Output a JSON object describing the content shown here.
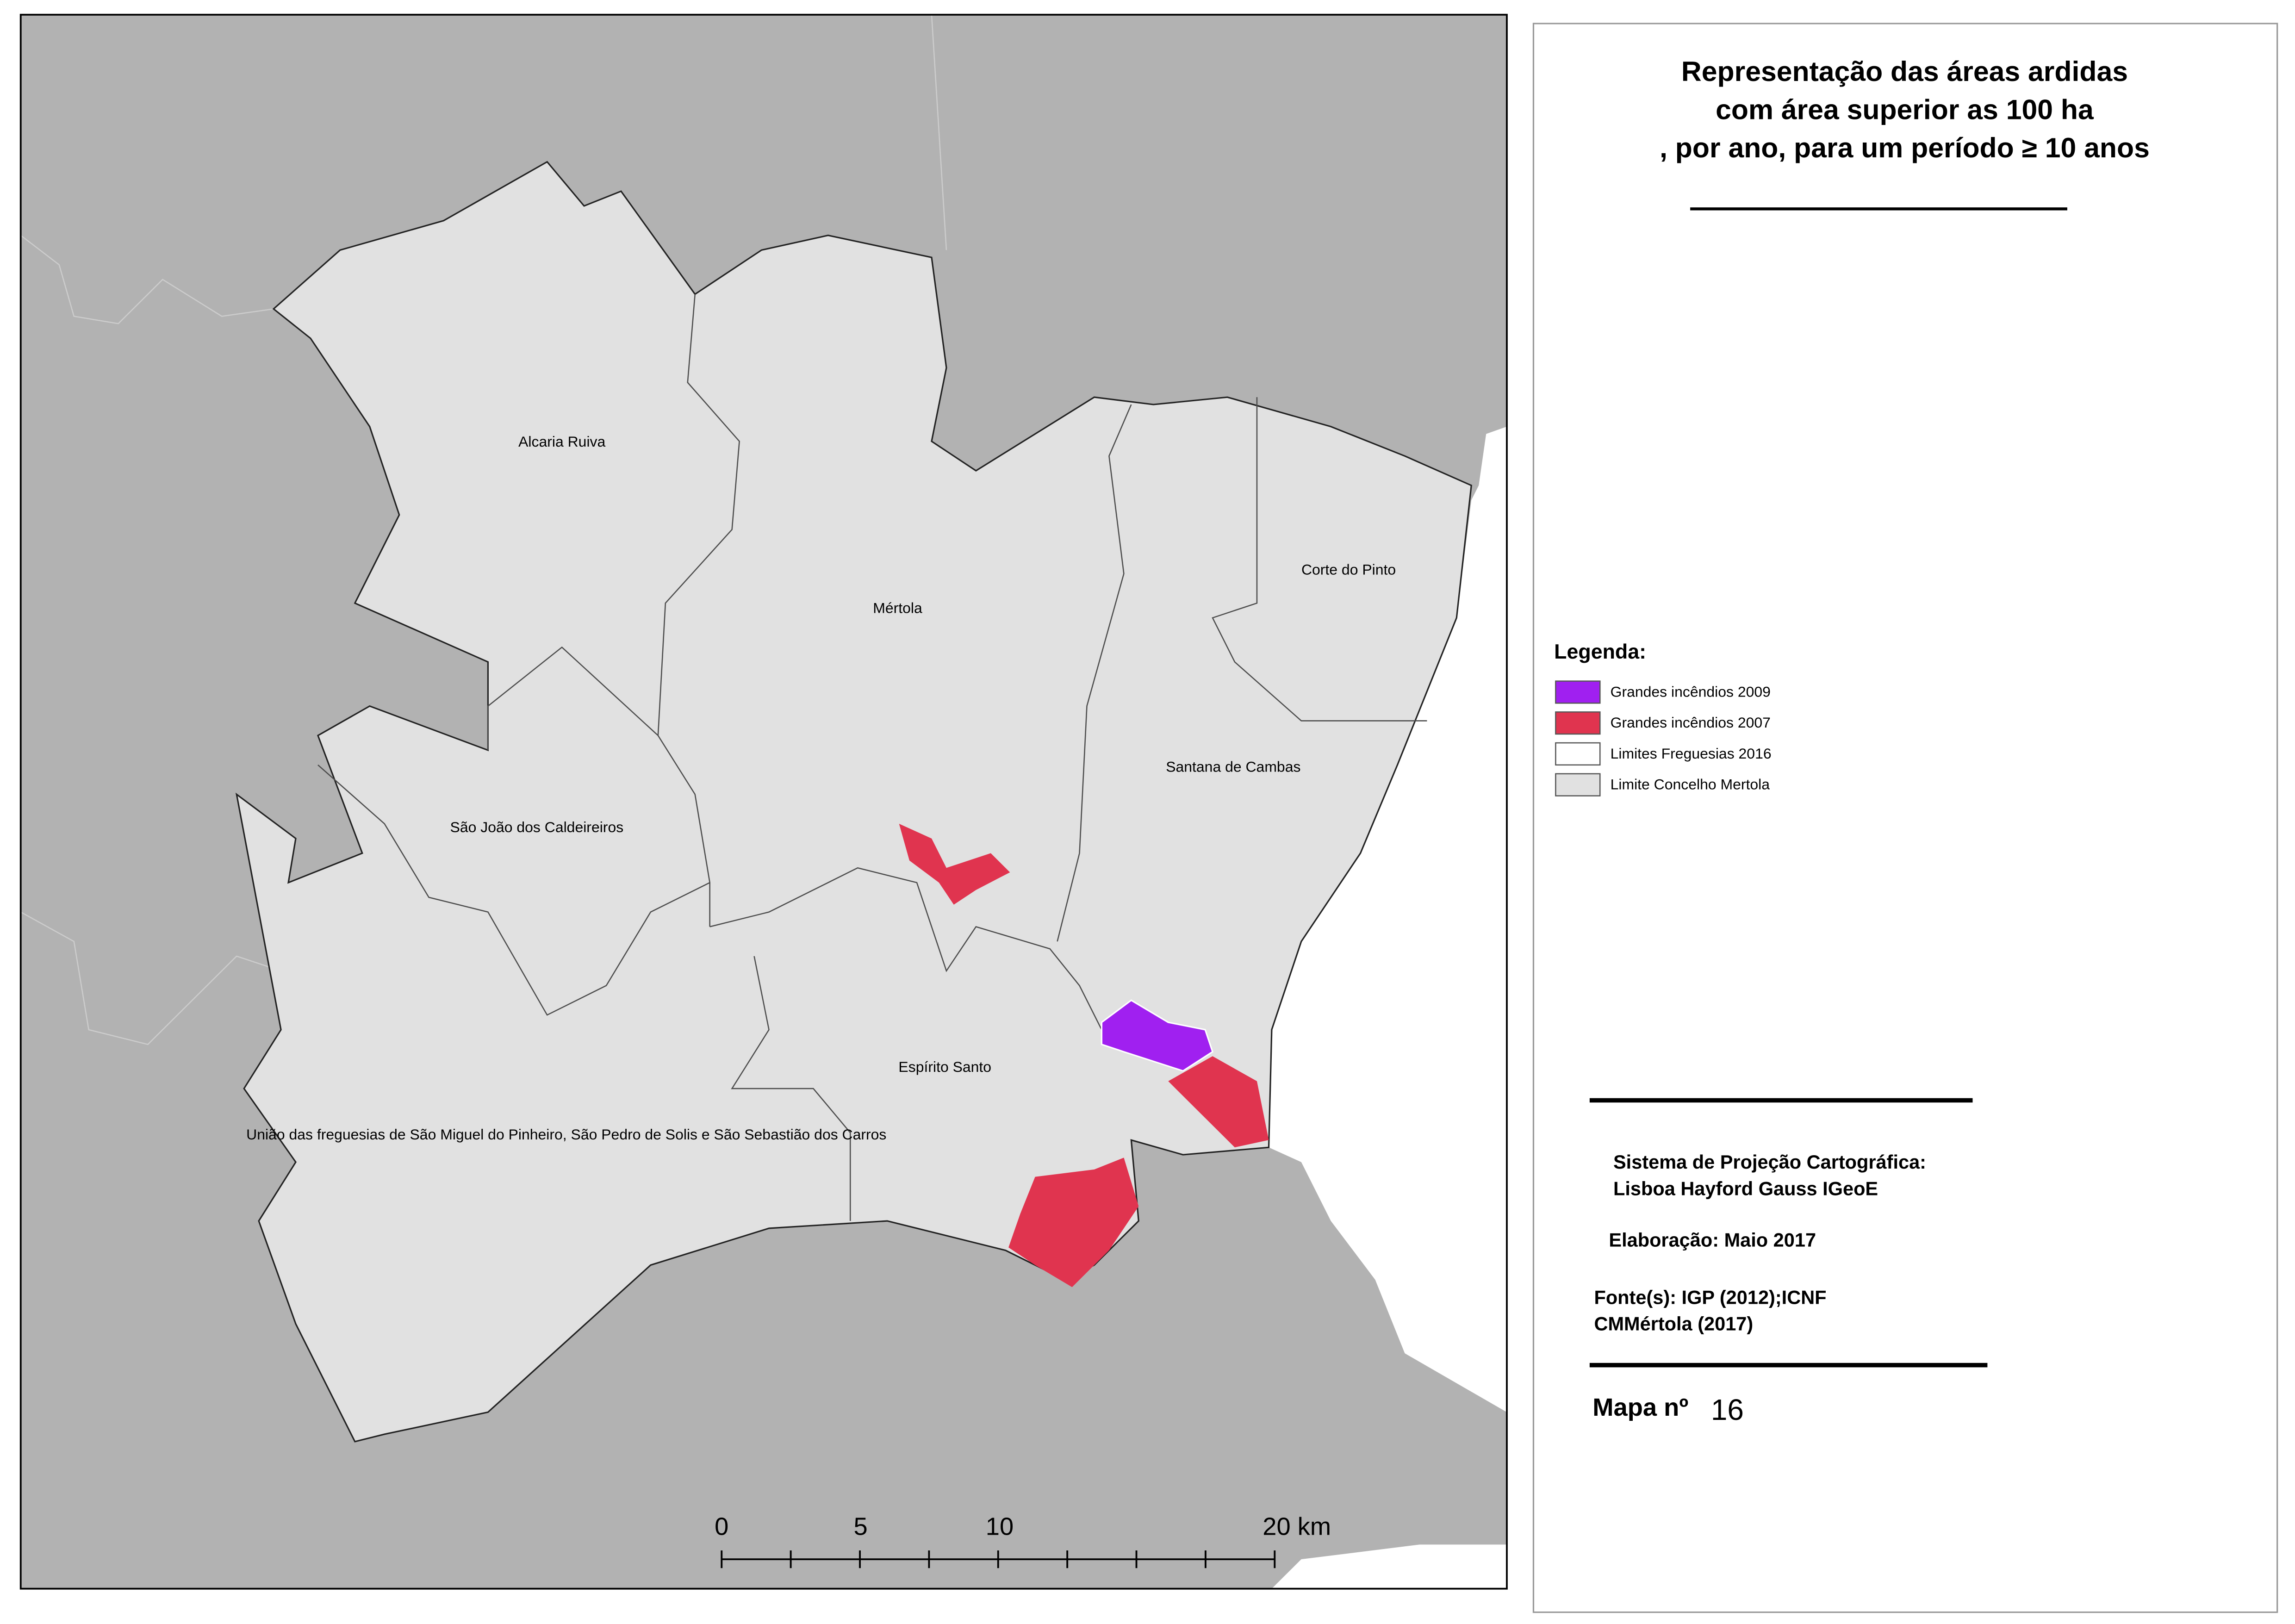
{
  "title": {
    "lines": [
      "Representação das áreas ardidas",
      "com área superior as 100 ha",
      ", por ano, para um período ≥ 10 anos"
    ]
  },
  "legend": {
    "title": "Legenda:",
    "items": [
      {
        "label": "Grandes incêndios 2009",
        "color": "#a020f0"
      },
      {
        "label": "Grandes incêndios 2007",
        "color": "#e0344f"
      },
      {
        "label": "Limites Freguesias 2016",
        "color": "#ffffff"
      },
      {
        "label": "Limite Concelho Mertola",
        "color": "#e1e1e1"
      }
    ]
  },
  "places": [
    "Alcaria Ruiva",
    "Mértola",
    "Corte do Pinto",
    "Santana de Cambas",
    "São João dos Caldeireiros",
    "Espírito Santo",
    "União das freguesias de São Miguel do Pinheiro, São Pedro de Solis e São Sebastião dos Carros"
  ],
  "scale_bar": {
    "labels": [
      "0",
      "5",
      "10",
      "20 km"
    ]
  },
  "info": {
    "projection_lines": [
      "Sistema de Projeção Cartográfica:",
      "Lisboa Hayford Gauss IGeoE"
    ],
    "elaboration": "Elaboração: Maio 2017",
    "sources": [
      "Fonte(s): IGP (2012);ICNF",
      "CMMértola (2017)"
    ]
  },
  "map_number": {
    "label": "Mapa nº",
    "number": "16"
  }
}
